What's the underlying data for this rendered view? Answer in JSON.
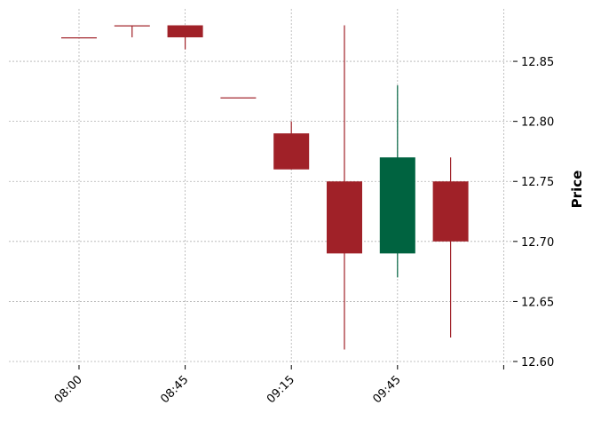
{
  "chart_data": {
    "type": "candlestick",
    "title": "",
    "xlabel": "",
    "ylabel": "Price",
    "ylim": [
      12.6,
      12.89
    ],
    "yticks": [
      12.6,
      12.65,
      12.7,
      12.75,
      12.8,
      12.85
    ],
    "ytick_labels": [
      "12.60",
      "12.65",
      "12.70",
      "12.75",
      "12.80",
      "12.85"
    ],
    "xtick_positions": [
      0,
      2,
      4,
      6,
      8
    ],
    "xtick_labels": [
      "08:00",
      "08:45",
      "09:15",
      "09:45",
      ""
    ],
    "grid": true,
    "up_color": "#006340",
    "down_color": "#a02128",
    "candles": [
      {
        "open": 12.87,
        "high": 12.87,
        "low": 12.87,
        "close": 12.87
      },
      {
        "open": 12.88,
        "high": 12.88,
        "low": 12.87,
        "close": 12.88
      },
      {
        "open": 12.88,
        "high": 12.88,
        "low": 12.86,
        "close": 12.87
      },
      {
        "open": 12.82,
        "high": 12.82,
        "low": 12.82,
        "close": 12.82
      },
      {
        "open": 12.79,
        "high": 12.8,
        "low": 12.76,
        "close": 12.76
      },
      {
        "open": 12.75,
        "high": 12.88,
        "low": 12.61,
        "close": 12.69
      },
      {
        "open": 12.69,
        "high": 12.83,
        "low": 12.67,
        "close": 12.77
      },
      {
        "open": 12.75,
        "high": 12.77,
        "low": 12.62,
        "close": 12.7
      }
    ]
  }
}
